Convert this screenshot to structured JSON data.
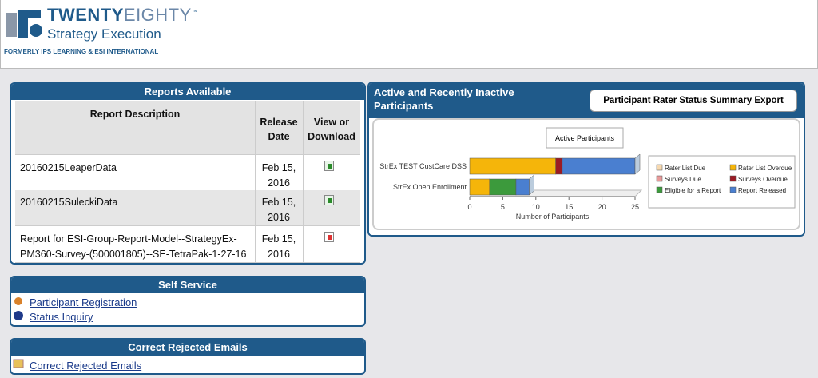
{
  "header": {
    "logo_bold": "TWENTY",
    "logo_light": "EIGHTY",
    "trademark": "™",
    "tagline": "Strategy Execution",
    "formerly": "FORMERLY IPS LEARNING & ESI INTERNATIONAL"
  },
  "reports": {
    "title": "Reports Available",
    "columns": [
      "Report Description",
      "Release Date",
      "View or Download"
    ],
    "rows": [
      [
        "20160215LeaperData",
        "Feb 15, 2016"
      ],
      [
        "20160215SuleckiData",
        "Feb 15, 2016"
      ],
      [
        "Report for ESI-Group-Report-Model--StrategyEx-PM360-Survey-(500001805)--SE-TetraPak-1-27-16",
        "Feb 15, 2016"
      ]
    ]
  },
  "self_service": {
    "title": "Self Service",
    "links": [
      "Participant Registration",
      "Status Inquiry"
    ]
  },
  "rejected_emails": {
    "title": "Correct Rejected Emails",
    "links": [
      "Correct Rejected Emails"
    ]
  },
  "active_panel": {
    "title": "Active and Recently Inactive Participants",
    "export_button": "Participant Rater Status Summary Export"
  },
  "chart_data": {
    "type": "hbar-stacked",
    "title": "Active Participants",
    "x_label": "Number of Participants",
    "categories": [
      "StrEx TEST CustCare DSS",
      "StrEx Open Enrollment"
    ],
    "series": [
      {
        "name": "Rater List Due",
        "color": "#f7d9b0",
        "values": [
          0,
          0
        ]
      },
      {
        "name": "Rater List Overdue",
        "color": "#f5b50a",
        "values": [
          13,
          3
        ]
      },
      {
        "name": "Surveys Due",
        "color": "#e89a9a",
        "values": [
          0,
          0
        ]
      },
      {
        "name": "Surveys Overdue",
        "color": "#9b1b24",
        "values": [
          1,
          0
        ]
      },
      {
        "name": "Eligible for a Report",
        "color": "#3c9a3c",
        "values": [
          0,
          4
        ]
      },
      {
        "name": "Report Released",
        "color": "#4a7fd0",
        "values": [
          11,
          2
        ]
      }
    ],
    "xlim": [
      0,
      25
    ],
    "xticks": [
      0,
      5,
      10,
      15,
      20,
      25
    ]
  }
}
